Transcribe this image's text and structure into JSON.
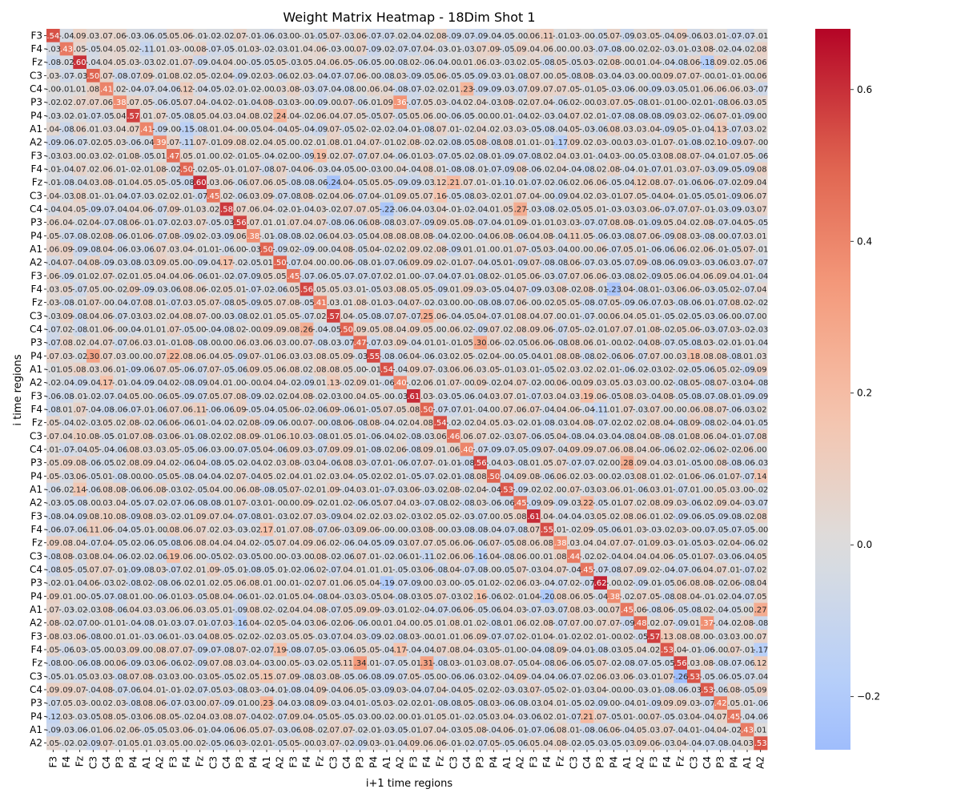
{
  "chart_data": {
    "type": "heatmap",
    "title": "Weight Matrix Heatmap - 18Dim Shot 1",
    "xlabel": "i+1 time regions",
    "ylabel": "i time regions",
    "row_labels": [
      "F3",
      "F4",
      "Fz",
      "C3",
      "C4",
      "P3",
      "P4",
      "A1",
      "A2",
      "F3",
      "F4",
      "Fz",
      "C3",
      "C4",
      "P3",
      "P4",
      "A1",
      "A2",
      "F3",
      "F4",
      "Fz",
      "C3",
      "C4",
      "P3",
      "P4",
      "A1",
      "A2",
      "F3",
      "F4",
      "Fz",
      "C3",
      "C4",
      "P3",
      "P4",
      "A1",
      "A2",
      "F3",
      "F4",
      "Fz",
      "C3",
      "C4",
      "P3",
      "P4",
      "A1",
      "A2",
      "F3",
      "F4",
      "Fz",
      "C3",
      "C4",
      "P3",
      "P4",
      "A1",
      "A2"
    ],
    "col_labels": [
      "F3",
      "F4",
      "Fz",
      "C3",
      "C4",
      "P3",
      "P4",
      "A1",
      "A2",
      "F3",
      "F4",
      "Fz",
      "C3",
      "C4",
      "P3",
      "P4",
      "A1",
      "A2",
      "F3",
      "F4",
      "Fz",
      "C3",
      "C4",
      "P3",
      "P4",
      "A1",
      "A2",
      "F3",
      "F4",
      "Fz",
      "C3",
      "C4",
      "P3",
      "P4",
      "A1",
      "A2",
      "F3",
      "F4",
      "Fz",
      "C3",
      "C4",
      "P3",
      "P4",
      "A1",
      "A2",
      "F3",
      "F4",
      "Fz",
      "C3",
      "C4",
      "P3",
      "P4",
      "A1",
      "A2"
    ],
    "colorbar": {
      "cmap": "coolwarm",
      "center": 0,
      "vmin": -0.27,
      "vmax": 0.68,
      "ticks": [
        -0.2,
        0.0,
        0.2,
        0.4,
        0.6
      ],
      "tick_labels": [
        "−0.2",
        "0.0",
        "0.2",
        "0.4",
        "0.6"
      ]
    },
    "annotated": true,
    "grid": false,
    "values_note_free": true,
    "diagonal_value": 0.5
  }
}
